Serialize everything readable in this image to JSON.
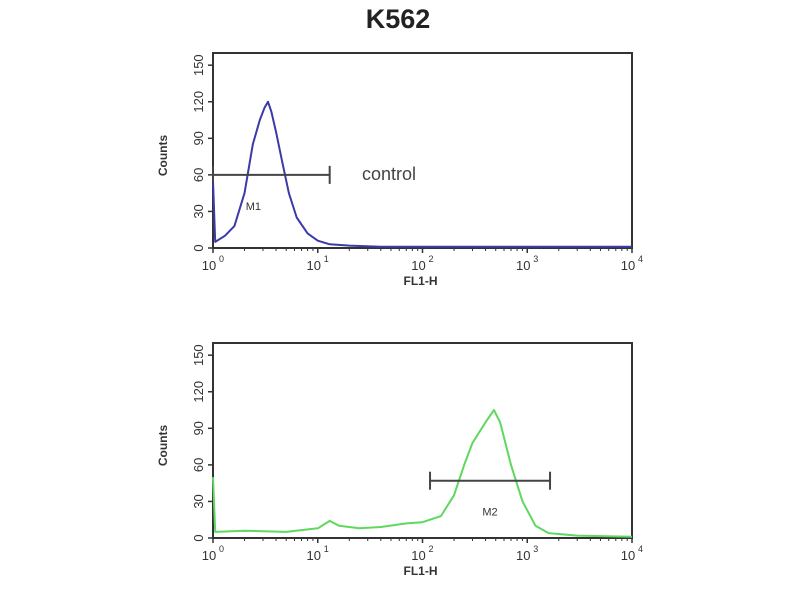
{
  "chart_data": [
    {
      "type": "line",
      "title": "K562",
      "xlabel": "FL1-H",
      "ylabel": "Counts",
      "xscale": "log",
      "xlim": [
        1,
        10000
      ],
      "ylim": [
        0,
        160
      ],
      "xticks": [
        {
          "base": "10",
          "exp": "0"
        },
        {
          "base": "10",
          "exp": "1"
        },
        {
          "base": "10",
          "exp": "2"
        },
        {
          "base": "10",
          "exp": "3"
        },
        {
          "base": "10",
          "exp": "4"
        }
      ],
      "yticks": [
        "0",
        "30",
        "60",
        "90",
        "120",
        "150"
      ],
      "annotation": "control",
      "marker": {
        "label": "M1",
        "range": [
          1,
          13
        ],
        "count": 60
      },
      "series": [
        {
          "color": "#3a3aa8",
          "x": [
            1,
            1.05,
            1.3,
            1.6,
            2,
            2.4,
            2.8,
            3.1,
            3.35,
            3.6,
            4,
            4.6,
            5.3,
            6.3,
            8,
            10,
            13,
            20,
            40,
            100,
            1000,
            10000
          ],
          "y": [
            55,
            5,
            10,
            18,
            45,
            85,
            105,
            115,
            120,
            112,
            95,
            70,
            45,
            25,
            12,
            6,
            3,
            2,
            1,
            1,
            1,
            1
          ]
        }
      ]
    },
    {
      "type": "line",
      "xlabel": "FL1-H",
      "ylabel": "Counts",
      "xscale": "log",
      "xlim": [
        1,
        10000
      ],
      "ylim": [
        0,
        160
      ],
      "xticks": [
        {
          "base": "10",
          "exp": "0"
        },
        {
          "base": "10",
          "exp": "1"
        },
        {
          "base": "10",
          "exp": "2"
        },
        {
          "base": "10",
          "exp": "3"
        },
        {
          "base": "10",
          "exp": "4"
        }
      ],
      "yticks": [
        "0",
        "30",
        "60",
        "90",
        "120",
        "150"
      ],
      "marker": {
        "label": "M2",
        "range": [
          118,
          1650
        ],
        "count": 47
      },
      "series": [
        {
          "color": "#5fd85f",
          "x": [
            1,
            1.05,
            2,
            5,
            10,
            13,
            16,
            25,
            40,
            70,
            100,
            150,
            200,
            250,
            300,
            400,
            480,
            550,
            700,
            900,
            1200,
            1600,
            3000,
            10000
          ],
          "y": [
            50,
            5,
            6,
            5,
            8,
            14,
            10,
            8,
            9,
            12,
            13,
            18,
            35,
            60,
            78,
            95,
            105,
            95,
            60,
            30,
            10,
            4,
            2,
            1
          ]
        }
      ]
    }
  ]
}
